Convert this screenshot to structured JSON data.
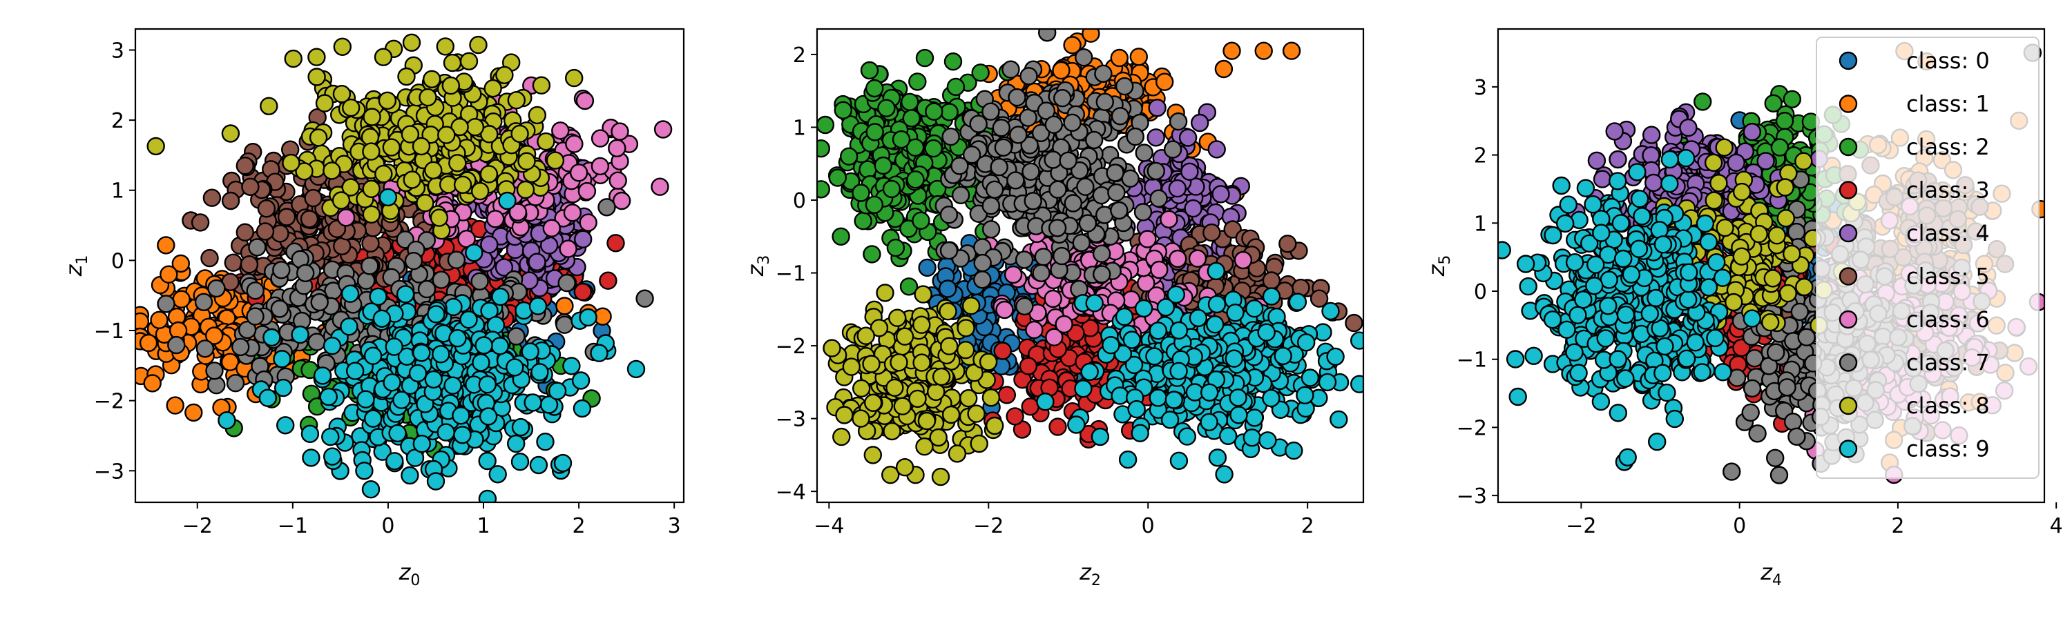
{
  "chart_data": [
    {
      "type": "scatter",
      "title": "",
      "xlabel": "z",
      "xlabel_sub": "0",
      "ylabel": "z",
      "ylabel_sub": "1",
      "xlim": [
        -2.65,
        3.1
      ],
      "ylim": [
        -3.45,
        3.3
      ],
      "xticks": [
        -2,
        -1,
        0,
        1,
        2,
        3
      ],
      "yticks": [
        -3,
        -2,
        -1,
        0,
        1,
        2,
        3
      ],
      "legend": false,
      "series": [
        {
          "name": "class: 0",
          "color": "#1f77b4",
          "n": 120,
          "cx": 0.9,
          "cy": -0.5,
          "sx": 0.5,
          "sy": 0.5
        },
        {
          "name": "class: 1",
          "color": "#ff7f0e",
          "n": 170,
          "cx": -1.8,
          "cy": -1.0,
          "sx": 0.4,
          "sy": 0.4,
          "points": [
            [
              -2.3,
              -0.2
            ],
            [
              -2.4,
              -0.85
            ],
            [
              -2.2,
              -1.0
            ],
            [
              2.1,
              -0.75
            ],
            [
              2.25,
              -0.8
            ],
            [
              1.6,
              0.0
            ],
            [
              1.85,
              -0.65
            ]
          ]
        },
        {
          "name": "class: 2",
          "color": "#2ca02c",
          "n": 120,
          "cx": 0.2,
          "cy": -1.5,
          "sx": 0.7,
          "sy": 0.5
        },
        {
          "name": "class: 3",
          "color": "#d62728",
          "n": 150,
          "cx": 0.6,
          "cy": -0.3,
          "sx": 0.7,
          "sy": 0.35
        },
        {
          "name": "class: 4",
          "color": "#9467bd",
          "n": 140,
          "cx": 1.5,
          "cy": 0.4,
          "sx": 0.3,
          "sy": 0.5
        },
        {
          "name": "class: 5",
          "color": "#8c564b",
          "n": 260,
          "cx": -0.6,
          "cy": 0.6,
          "sx": 0.5,
          "sy": 0.45,
          "points": [
            [
              -1.5,
              1.35
            ],
            [
              -1.65,
              0.85
            ],
            [
              -1.5,
              0.4
            ]
          ]
        },
        {
          "name": "class: 6",
          "color": "#e377c2",
          "n": 170,
          "cx": 1.2,
          "cy": 1.2,
          "sx": 0.6,
          "sy": 0.45,
          "points": [
            [
              2.85,
              1.05
            ],
            [
              2.45,
              0.85
            ],
            [
              2.4,
              1.6
            ],
            [
              2.0,
              1.25
            ]
          ]
        },
        {
          "name": "class: 7",
          "color": "#7f7f7f",
          "n": 260,
          "cx": 0.0,
          "cy": -0.9,
          "sx": 0.8,
          "sy": 0.45,
          "points": [
            [
              -1.8,
              -0.4
            ],
            [
              -1.6,
              -1.75
            ],
            [
              -1.3,
              -1.7
            ]
          ]
        },
        {
          "name": "class: 8",
          "color": "#bcbd22",
          "n": 320,
          "cx": 0.4,
          "cy": 1.75,
          "sx": 0.6,
          "sy": 0.5,
          "points": [
            [
              -1.25,
              2.2
            ],
            [
              -0.75,
              2.9
            ],
            [
              0.6,
              3.05
            ],
            [
              1.95,
              2.6
            ],
            [
              -0.05,
              2.9
            ]
          ]
        },
        {
          "name": "class: 9",
          "color": "#17becf",
          "n": 440,
          "cx": 0.6,
          "cy": -1.75,
          "sx": 0.6,
          "sy": 0.55,
          "points": [
            [
              2.6,
              -1.55
            ],
            [
              -0.25,
              -3.0
            ],
            [
              0.5,
              -3.15
            ],
            [
              1.15,
              -3.05
            ],
            [
              1.25,
              0.85
            ],
            [
              0.0,
              0.9
            ]
          ]
        }
      ]
    },
    {
      "type": "scatter",
      "title": "",
      "xlabel": "z",
      "xlabel_sub": "2",
      "ylabel": "z",
      "ylabel_sub": "3",
      "xlim": [
        -4.15,
        2.7
      ],
      "ylim": [
        -4.15,
        2.35
      ],
      "xticks": [
        -4,
        -2,
        0,
        2
      ],
      "yticks": [
        -4,
        -3,
        -2,
        -1,
        0,
        1,
        2
      ],
      "legend": false,
      "series": [
        {
          "name": "class: 0",
          "color": "#1f77b4",
          "n": 120,
          "cx": -2.0,
          "cy": -1.6,
          "sx": 0.4,
          "sy": 0.5
        },
        {
          "name": "class: 1",
          "color": "#ff7f0e",
          "n": 160,
          "cx": -0.8,
          "cy": 1.45,
          "sx": 0.5,
          "sy": 0.25,
          "points": [
            [
              1.05,
              2.05
            ],
            [
              1.45,
              2.05
            ],
            [
              1.8,
              2.05
            ],
            [
              0.95,
              1.8
            ],
            [
              0.75,
              0.8
            ],
            [
              0.55,
              0.7
            ],
            [
              0.35,
              1.2
            ],
            [
              0.6,
              0.3
            ],
            [
              1.1,
              0.1
            ]
          ]
        },
        {
          "name": "class: 2",
          "color": "#2ca02c",
          "n": 300,
          "cx": -3.0,
          "cy": 0.6,
          "sx": 0.45,
          "sy": 0.55,
          "points": [
            [
              -3.85,
              -0.5
            ],
            [
              -3.75,
              0.6
            ],
            [
              -3.6,
              0.1
            ],
            [
              -2.1,
              1.75
            ]
          ]
        },
        {
          "name": "class: 3",
          "color": "#d62728",
          "n": 160,
          "cx": -0.8,
          "cy": -2.2,
          "sx": 0.45,
          "sy": 0.45
        },
        {
          "name": "class: 4",
          "color": "#9467bd",
          "n": 150,
          "cx": 0.4,
          "cy": -0.1,
          "sx": 0.3,
          "sy": 0.5
        },
        {
          "name": "class: 5",
          "color": "#8c564b",
          "n": 130,
          "cx": 1.1,
          "cy": -1.2,
          "sx": 0.5,
          "sy": 0.35,
          "points": [
            [
              1.75,
              -0.6
            ],
            [
              1.35,
              -0.65
            ],
            [
              1.3,
              -0.75
            ]
          ]
        },
        {
          "name": "class: 6",
          "color": "#e377c2",
          "n": 170,
          "cx": -0.6,
          "cy": -1.1,
          "sx": 0.6,
          "sy": 0.35
        },
        {
          "name": "class: 7",
          "color": "#7f7f7f",
          "n": 330,
          "cx": -1.3,
          "cy": 0.35,
          "sx": 0.6,
          "sy": 0.65
        },
        {
          "name": "class: 8",
          "color": "#bcbd22",
          "n": 260,
          "cx": -2.9,
          "cy": -2.5,
          "sx": 0.45,
          "sy": 0.45,
          "points": [
            [
              -3.6,
              -3.0
            ],
            [
              -3.45,
              -3.5
            ],
            [
              -2.6,
              -3.8
            ]
          ]
        },
        {
          "name": "class: 9",
          "color": "#17becf",
          "n": 380,
          "cx": 0.9,
          "cy": -2.3,
          "sx": 0.7,
          "sy": 0.45,
          "points": [
            [
              2.35,
              -2.15
            ],
            [
              2.25,
              -2.5
            ],
            [
              -0.6,
              -3.25
            ],
            [
              -0.1,
              -3.2
            ],
            [
              1.5,
              -3.3
            ]
          ]
        }
      ]
    },
    {
      "type": "scatter",
      "title": "",
      "xlabel": "z",
      "xlabel_sub": "4",
      "ylabel": "z",
      "ylabel_sub": "5",
      "xlim": [
        -3.05,
        3.85
      ],
      "ylim": [
        -3.1,
        3.85
      ],
      "xticks": [
        -2,
        0,
        2,
        4
      ],
      "yticks": [
        -3,
        -2,
        -1,
        0,
        1,
        2,
        3
      ],
      "legend": true,
      "legend_loc": "upper right",
      "series": [
        {
          "name": "class: 0",
          "color": "#1f77b4",
          "n": 120,
          "cx": 0.6,
          "cy": 0.4,
          "sx": 0.5,
          "sy": 0.6
        },
        {
          "name": "class: 1",
          "color": "#ff7f0e",
          "n": 160,
          "cx": 2.3,
          "cy": 0.5,
          "sx": 0.5,
          "sy": 1.0
        },
        {
          "name": "class: 2",
          "color": "#2ca02c",
          "n": 180,
          "cx": 0.5,
          "cy": 1.6,
          "sx": 0.4,
          "sy": 0.5
        },
        {
          "name": "class: 3",
          "color": "#d62728",
          "n": 140,
          "cx": 0.2,
          "cy": -0.3,
          "sx": 0.4,
          "sy": 0.6
        },
        {
          "name": "class: 4",
          "color": "#9467bd",
          "n": 230,
          "cx": -0.6,
          "cy": 1.5,
          "sx": 0.5,
          "sy": 0.45
        },
        {
          "name": "class: 5",
          "color": "#8c564b",
          "n": 120,
          "cx": 2.2,
          "cy": 0.2,
          "sx": 0.6,
          "sy": 0.8
        },
        {
          "name": "class: 6",
          "color": "#e377c2",
          "n": 160,
          "cx": 2.0,
          "cy": -0.8,
          "sx": 0.6,
          "sy": 0.7
        },
        {
          "name": "class: 7",
          "color": "#7f7f7f",
          "n": 260,
          "cx": 1.0,
          "cy": -0.6,
          "sx": 0.6,
          "sy": 0.8,
          "points": [
            [
              -0.1,
              -2.65
            ],
            [
              0.5,
              -2.7
            ],
            [
              0.45,
              -2.45
            ],
            [
              3.7,
              3.5
            ]
          ]
        },
        {
          "name": "class: 8",
          "color": "#bcbd22",
          "n": 150,
          "cx": 0.0,
          "cy": 0.5,
          "sx": 0.5,
          "sy": 0.5
        },
        {
          "name": "class: 9",
          "color": "#17becf",
          "n": 460,
          "cx": -1.3,
          "cy": -0.1,
          "sx": 0.55,
          "sy": 0.7,
          "points": [
            [
              -2.8,
              -1.55
            ],
            [
              -2.7,
              0.4
            ],
            [
              -2.6,
              -0.95
            ],
            [
              -2.25,
              1.55
            ]
          ]
        }
      ]
    }
  ]
}
